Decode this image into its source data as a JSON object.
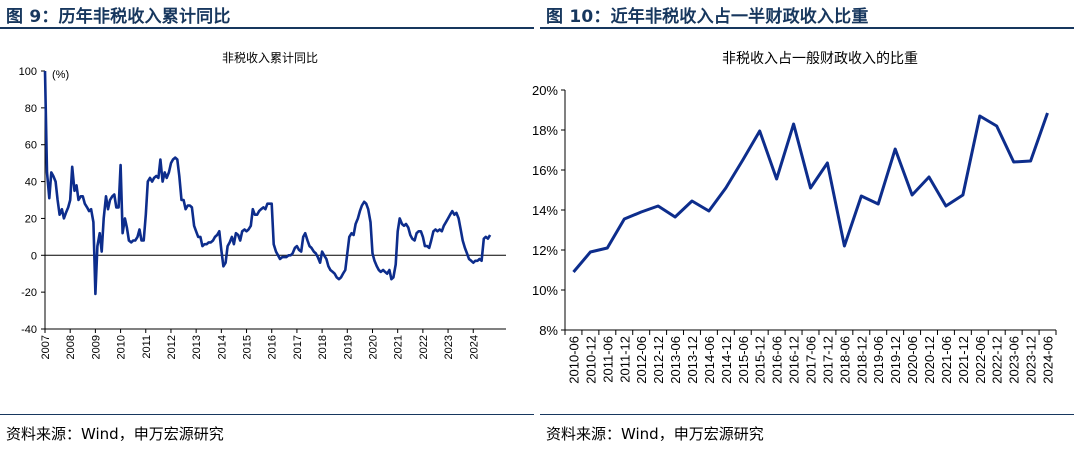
{
  "left": {
    "figure_title": "图 9：历年非税收入累计同比",
    "source": "资料来源：Wind，申万宏源研究"
  },
  "right": {
    "figure_title": "图 10：近年非税收入占一半财政收入比重",
    "source": "资料来源：Wind，申万宏源研究"
  },
  "chart_data": [
    {
      "type": "line",
      "title": "非税收入累计同比",
      "ylabel": "(%)",
      "xlabel": "",
      "ylim": [
        -40,
        100
      ],
      "yticks": [
        -40,
        -20,
        0,
        20,
        40,
        60,
        80,
        100
      ],
      "xlim": [
        2007,
        2025.3
      ],
      "xticks": [
        "2007",
        "2008",
        "2009",
        "2010",
        "2011",
        "2012",
        "2013",
        "2014",
        "2015",
        "2016",
        "2017",
        "2018",
        "2019",
        "2020",
        "2021",
        "2022",
        "2023",
        "2024"
      ],
      "color": "#0d2d8c",
      "series": [
        {
          "name": "非税收入累计同比",
          "x": [
            2007.0,
            2007.08,
            2007.17,
            2007.25,
            2007.33,
            2007.42,
            2007.5,
            2007.58,
            2007.67,
            2007.75,
            2007.83,
            2007.92,
            2008.0,
            2008.08,
            2008.17,
            2008.25,
            2008.33,
            2008.42,
            2008.5,
            2008.58,
            2008.67,
            2008.75,
            2008.83,
            2008.92,
            2009.0,
            2009.08,
            2009.17,
            2009.25,
            2009.33,
            2009.42,
            2009.5,
            2009.58,
            2009.67,
            2009.75,
            2009.83,
            2009.92,
            2010.0,
            2010.08,
            2010.17,
            2010.25,
            2010.33,
            2010.42,
            2010.5,
            2010.58,
            2010.67,
            2010.75,
            2010.83,
            2010.92,
            2011.0,
            2011.08,
            2011.17,
            2011.25,
            2011.33,
            2011.42,
            2011.5,
            2011.58,
            2011.67,
            2011.75,
            2011.83,
            2011.92,
            2012.0,
            2012.08,
            2012.17,
            2012.25,
            2012.33,
            2012.42,
            2012.5,
            2012.58,
            2012.67,
            2012.75,
            2012.83,
            2012.92,
            2013.0,
            2013.08,
            2013.17,
            2013.25,
            2013.33,
            2013.42,
            2013.5,
            2013.58,
            2013.67,
            2013.75,
            2013.83,
            2013.92,
            2014.0,
            2014.08,
            2014.17,
            2014.25,
            2014.33,
            2014.42,
            2014.5,
            2014.58,
            2014.67,
            2014.75,
            2014.83,
            2014.92,
            2015.0,
            2015.08,
            2015.17,
            2015.25,
            2015.33,
            2015.42,
            2015.5,
            2015.58,
            2015.67,
            2015.75,
            2015.83,
            2015.92,
            2016.0,
            2016.08,
            2016.17,
            2016.25,
            2016.33,
            2016.42,
            2016.5,
            2016.58,
            2016.67,
            2016.75,
            2016.83,
            2016.92,
            2017.0,
            2017.08,
            2017.17,
            2017.25,
            2017.33,
            2017.42,
            2017.5,
            2017.58,
            2017.67,
            2017.75,
            2017.83,
            2017.92,
            2018.0,
            2018.08,
            2018.17,
            2018.25,
            2018.33,
            2018.42,
            2018.5,
            2018.58,
            2018.67,
            2018.75,
            2018.83,
            2018.92,
            2019.0,
            2019.08,
            2019.17,
            2019.25,
            2019.33,
            2019.42,
            2019.5,
            2019.58,
            2019.67,
            2019.75,
            2019.83,
            2019.92,
            2020.0,
            2020.08,
            2020.17,
            2020.25,
            2020.33,
            2020.42,
            2020.5,
            2020.58,
            2020.67,
            2020.75,
            2020.83,
            2020.92,
            2021.0,
            2021.08,
            2021.17,
            2021.25,
            2021.33,
            2021.42,
            2021.5,
            2021.58,
            2021.67,
            2021.75,
            2021.83,
            2021.92,
            2022.0,
            2022.08,
            2022.17,
            2022.25,
            2022.33,
            2022.42,
            2022.5,
            2022.58,
            2022.67,
            2022.75,
            2022.83,
            2022.92,
            2023.0,
            2023.08,
            2023.17,
            2023.25,
            2023.33,
            2023.42,
            2023.5,
            2023.58,
            2023.67,
            2023.75,
            2023.83,
            2023.92,
            2024.0,
            2024.08,
            2024.17,
            2024.25,
            2024.33,
            2024.42,
            2024.5,
            2024.58,
            2024.67
          ],
          "values": [
            100,
            45,
            31,
            45,
            43,
            40,
            30,
            22,
            25,
            20,
            23,
            26,
            30,
            48,
            35,
            38,
            30,
            32,
            32,
            28,
            26,
            24,
            25,
            18,
            -21,
            5,
            12,
            2,
            20,
            32,
            25,
            30,
            32,
            33,
            26,
            26,
            49,
            12,
            20,
            15,
            8,
            7,
            8,
            8,
            10,
            14,
            8,
            8,
            22,
            40,
            42,
            40,
            42,
            43,
            42,
            52,
            40,
            45,
            42,
            45,
            50,
            52,
            53,
            52,
            43,
            30,
            30,
            25,
            27,
            27,
            26,
            16,
            13,
            10,
            10,
            5,
            6,
            6,
            7,
            7,
            8,
            10,
            11,
            13,
            3,
            -6,
            -4,
            5,
            7,
            10,
            6,
            12,
            11,
            8,
            13,
            14,
            13,
            14,
            16,
            25,
            22,
            22,
            24,
            25,
            26,
            25,
            28,
            28,
            28,
            6,
            2,
            0,
            -2,
            -1,
            -1,
            -1,
            0,
            0,
            1,
            4,
            5,
            3,
            2,
            10,
            12,
            8,
            5,
            4,
            2,
            1,
            -1,
            -4,
            2,
            0,
            -2,
            -6,
            -8,
            -9,
            -10,
            -12,
            -13,
            -12,
            -10,
            -8,
            1,
            10,
            12,
            11,
            17,
            20,
            24,
            27,
            29,
            28,
            25,
            18,
            1,
            -3,
            -6,
            -8,
            -9,
            -8,
            -9,
            -10,
            -8,
            -13,
            -12,
            -5,
            13,
            20,
            17,
            16,
            17,
            15,
            11,
            9,
            8,
            12,
            13,
            13,
            10,
            5,
            5,
            4,
            8,
            13,
            14,
            13,
            14,
            13,
            16,
            18,
            20,
            22,
            24,
            22,
            23,
            20,
            14,
            8,
            4,
            1,
            -2,
            -3,
            -4,
            -3,
            -3,
            -2,
            -3,
            9,
            10,
            9,
            11
          ]
        }
      ]
    },
    {
      "type": "line",
      "title": "非税收入占一般财政收入的比重",
      "xlabel": "",
      "ylabel": "",
      "ylim": [
        8,
        20
      ],
      "yticks": [
        "8%",
        "10%",
        "12%",
        "14%",
        "16%",
        "18%",
        "20%"
      ],
      "categories": [
        "2010-06",
        "2010-12",
        "2011-06",
        "2011-12",
        "2012-06",
        "2012-12",
        "2013-06",
        "2013-12",
        "2014-06",
        "2014-12",
        "2015-06",
        "2015-12",
        "2016-06",
        "2016-12",
        "2017-06",
        "2017-12",
        "2018-06",
        "2018-12",
        "2019-06",
        "2019-12",
        "2020-06",
        "2020-12",
        "2021-06",
        "2021-12",
        "2022-06",
        "2022-12",
        "2023-06",
        "2023-12",
        "2024-06"
      ],
      "color": "#0d2d8c",
      "series": [
        {
          "name": "非税收入占一般财政收入的比重",
          "values": [
            10.9,
            11.9,
            12.1,
            13.55,
            13.9,
            14.2,
            13.65,
            14.45,
            13.95,
            15.1,
            16.5,
            17.95,
            15.55,
            18.3,
            15.1,
            16.35,
            12.2,
            14.7,
            14.3,
            17.05,
            14.75,
            15.65,
            14.2,
            14.75,
            18.7,
            18.2,
            16.4,
            16.45,
            18.85
          ]
        }
      ]
    }
  ]
}
